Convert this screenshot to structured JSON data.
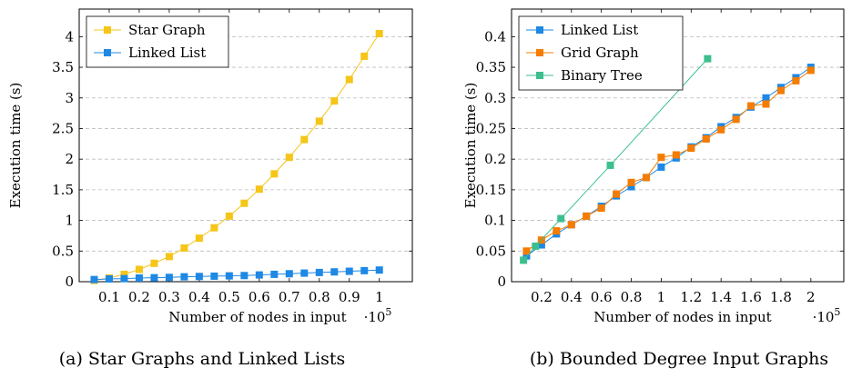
{
  "colors": {
    "yellow": "#F5C518",
    "blue": "#1E88E5",
    "orange": "#F57C00",
    "teal": "#3CBF8F"
  },
  "chart_data": [
    {
      "type": "line",
      "caption": "(a) Star Graphs and Linked Lists",
      "xlabel": "Number of nodes in input",
      "ylabel": "Execution time (s)",
      "x_multiplier": "·10",
      "x_multiplier_exp": "5",
      "xlim": [
        0.0,
        1.11
      ],
      "ylim": [
        0,
        4.45
      ],
      "xticks": [
        0.1,
        0.2,
        0.3,
        0.4,
        0.5,
        0.6,
        0.7,
        0.8,
        0.9,
        1
      ],
      "xtick_labels": [
        "0.1",
        "0.2",
        "0.3",
        "0.4",
        "0.5",
        "0.6",
        "0.7",
        "0.8",
        "0.9",
        "1"
      ],
      "yticks": [
        0,
        0.5,
        1,
        1.5,
        2,
        2.5,
        3,
        3.5,
        4
      ],
      "ytick_labels": [
        "0",
        "0.5",
        "1",
        "1.5",
        "2",
        "2.5",
        "3",
        "3.5",
        "4"
      ],
      "grid": "horizontal dashed",
      "legend_position": "top-left",
      "series": [
        {
          "name": "Star Graph",
          "color": "#F5C518",
          "x": [
            0.05,
            0.1,
            0.15,
            0.2,
            0.25,
            0.3,
            0.35,
            0.4,
            0.45,
            0.5,
            0.55,
            0.6,
            0.65,
            0.7,
            0.75,
            0.8,
            0.85,
            0.9,
            0.95,
            1.0
          ],
          "y": [
            0.02,
            0.06,
            0.12,
            0.2,
            0.3,
            0.41,
            0.55,
            0.71,
            0.88,
            1.07,
            1.28,
            1.51,
            1.76,
            2.03,
            2.32,
            2.62,
            2.95,
            3.3,
            3.68,
            4.05
          ]
        },
        {
          "name": "Linked List",
          "color": "#1E88E5",
          "x": [
            0.05,
            0.1,
            0.15,
            0.2,
            0.25,
            0.3,
            0.35,
            0.4,
            0.45,
            0.5,
            0.55,
            0.6,
            0.65,
            0.7,
            0.75,
            0.8,
            0.85,
            0.9,
            0.95,
            1.0
          ],
          "y": [
            0.035,
            0.045,
            0.05,
            0.06,
            0.065,
            0.07,
            0.08,
            0.085,
            0.09,
            0.095,
            0.1,
            0.11,
            0.12,
            0.13,
            0.14,
            0.15,
            0.16,
            0.17,
            0.18,
            0.19
          ]
        }
      ]
    },
    {
      "type": "line",
      "caption": "(b) Bounded Degree Input Graphs",
      "xlabel": "Number of nodes in input",
      "ylabel": "Execution time (s)",
      "x_multiplier": "·10",
      "x_multiplier_exp": "5",
      "xlim": [
        0.0,
        2.22
      ],
      "ylim": [
        0,
        0.445
      ],
      "xticks": [
        0.2,
        0.4,
        0.6,
        0.8,
        1,
        1.2,
        1.4,
        1.6,
        1.8,
        2
      ],
      "xtick_labels": [
        "0.2",
        "0.4",
        "0.6",
        "0.8",
        "1",
        "1.2",
        "1.4",
        "1.6",
        "1.8",
        "2"
      ],
      "yticks": [
        0,
        0.05,
        0.1,
        0.15,
        0.2,
        0.25,
        0.3,
        0.35,
        0.4
      ],
      "ytick_labels": [
        "0",
        "0.05",
        "0.1",
        "0.15",
        "0.2",
        "0.25",
        "0.3",
        "0.35",
        "0.4"
      ],
      "grid": "horizontal dashed",
      "legend_position": "top-left",
      "series": [
        {
          "name": "Linked List",
          "color": "#1E88E5",
          "x": [
            0.1,
            0.2,
            0.3,
            0.4,
            0.5,
            0.6,
            0.7,
            0.8,
            0.9,
            1.0,
            1.1,
            1.2,
            1.3,
            1.4,
            1.5,
            1.6,
            1.7,
            1.8,
            1.9,
            2.0
          ],
          "y": [
            0.042,
            0.06,
            0.078,
            0.093,
            0.107,
            0.123,
            0.14,
            0.155,
            0.17,
            0.187,
            0.202,
            0.22,
            0.235,
            0.253,
            0.268,
            0.285,
            0.3,
            0.317,
            0.333,
            0.35
          ]
        },
        {
          "name": "Grid Graph",
          "color": "#F57C00",
          "x": [
            0.1,
            0.2,
            0.3,
            0.4,
            0.5,
            0.6,
            0.7,
            0.8,
            0.9,
            1.0,
            1.1,
            1.2,
            1.3,
            1.4,
            1.5,
            1.6,
            1.7,
            1.8,
            1.9,
            2.0
          ],
          "y": [
            0.05,
            0.068,
            0.083,
            0.093,
            0.107,
            0.12,
            0.143,
            0.162,
            0.17,
            0.203,
            0.207,
            0.218,
            0.233,
            0.248,
            0.265,
            0.287,
            0.29,
            0.312,
            0.328,
            0.345
          ]
        },
        {
          "name": "Binary Tree",
          "color": "#3CBF8F",
          "x": [
            0.08,
            0.16,
            0.33,
            0.66,
            1.31
          ],
          "y": [
            0.035,
            0.058,
            0.103,
            0.19,
            0.364
          ]
        }
      ]
    }
  ]
}
